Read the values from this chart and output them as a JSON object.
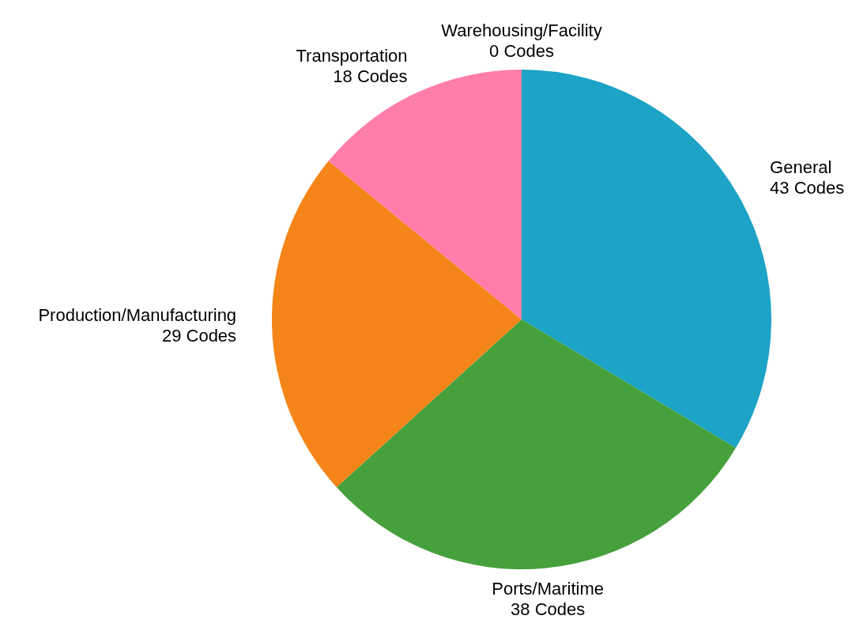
{
  "chart_data": {
    "type": "pie",
    "categories": [
      "Warehousing/Facility",
      "General",
      "Ports/Maritime",
      "Production/Manufacturing",
      "Transportation"
    ],
    "values": [
      0,
      43,
      38,
      29,
      18
    ],
    "colors": [
      "#9467bd",
      "#1ca3c6",
      "#46a03c",
      "#f58518",
      "#ff7dab"
    ],
    "value_labels": [
      "0 Codes",
      "43 Codes",
      "38 Codes",
      "29 Codes",
      "18 Codes"
    ],
    "legend": false
  }
}
